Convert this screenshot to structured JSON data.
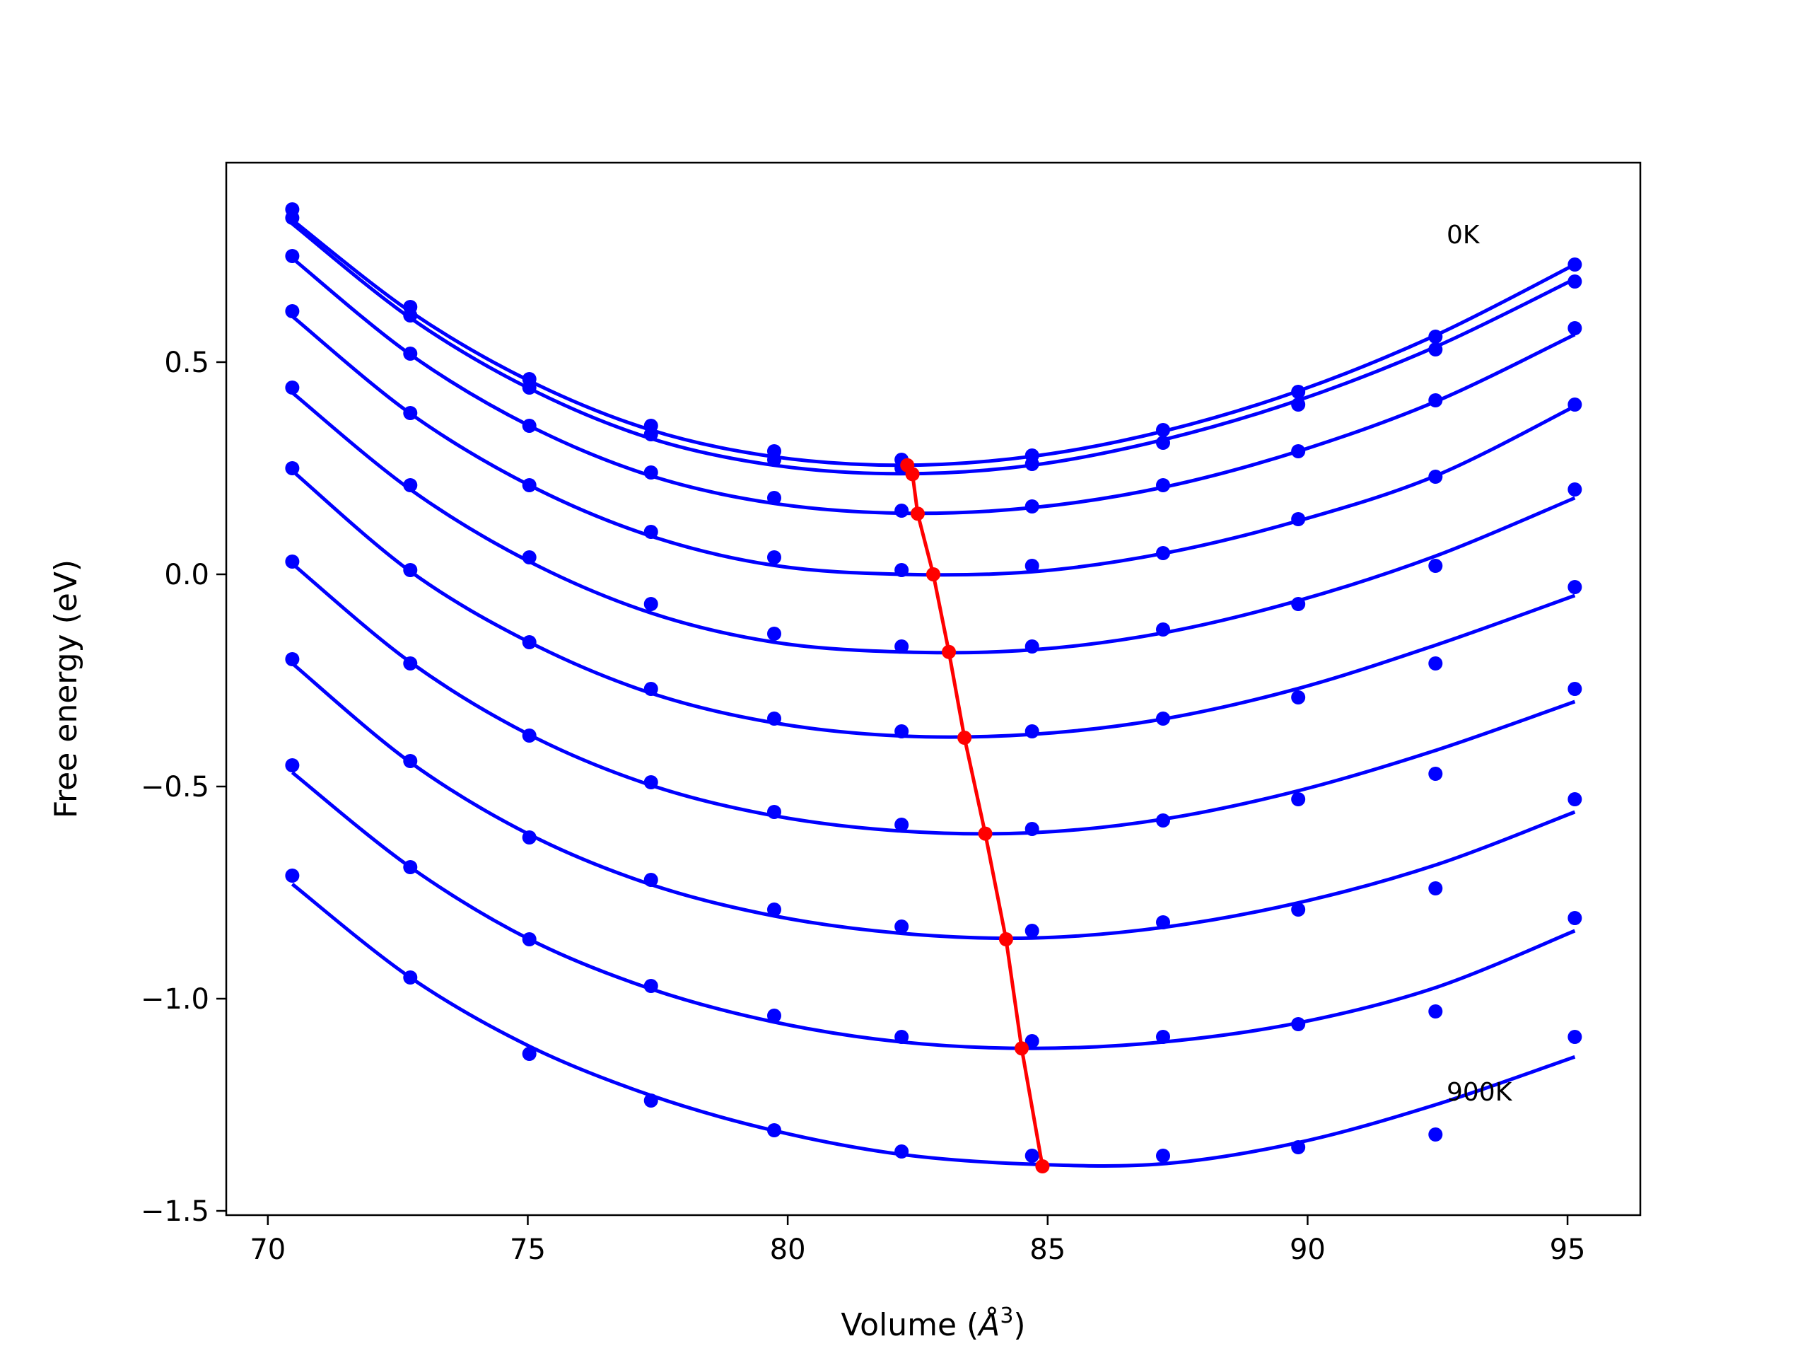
{
  "chart_data": {
    "type": "line",
    "title": "",
    "xlabel_main": "Volume (",
    "xlabel_unit": "Å",
    "xlabel_sup": "3",
    "xlabel_close": ")",
    "ylabel": "Free energy (eV)",
    "xlim": [
      69.2,
      96.4
    ],
    "ylim": [
      -1.51,
      0.97
    ],
    "x_ticks": [
      70,
      75,
      80,
      85,
      90,
      95
    ],
    "x_tick_labels": [
      "70",
      "75",
      "80",
      "85",
      "90",
      "95"
    ],
    "y_ticks": [
      -1.5,
      -1.0,
      -0.5,
      0.0,
      0.5
    ],
    "y_tick_labels": [
      "−1.5",
      "−1.0",
      "−0.5",
      "0.0",
      "0.5"
    ],
    "grid": false,
    "annotations": [
      {
        "text": "0K",
        "x": 92.5,
        "y": 0.78
      },
      {
        "text": "900K",
        "x": 92.5,
        "y": -1.25
      }
    ],
    "volumes": [
      70.47,
      72.74,
      75.03,
      77.37,
      79.74,
      82.19,
      84.7,
      87.22,
      89.82,
      92.46,
      95.14
    ],
    "curve_color": "#0000ff",
    "min_color": "#ff0000",
    "series": [
      {
        "points": [
          0.86,
          0.63,
          0.46,
          0.35,
          0.29,
          0.27,
          0.28,
          0.34,
          0.43,
          0.56,
          0.73
        ],
        "fit": [
          0.835,
          0.619,
          0.456,
          0.34,
          0.277,
          0.257,
          0.278,
          0.337,
          0.432,
          0.563,
          0.73
        ]
      },
      {
        "points": [
          0.84,
          0.61,
          0.44,
          0.33,
          0.27,
          0.25,
          0.26,
          0.31,
          0.4,
          0.53,
          0.69
        ],
        "fit": [
          0.826,
          0.604,
          0.438,
          0.32,
          0.257,
          0.237,
          0.257,
          0.317,
          0.41,
          0.536,
          0.696
        ]
      },
      {
        "points": [
          0.75,
          0.52,
          0.35,
          0.24,
          0.18,
          0.15,
          0.16,
          0.21,
          0.29,
          0.41,
          0.58
        ],
        "fit": [
          0.745,
          0.518,
          0.35,
          0.232,
          0.167,
          0.144,
          0.157,
          0.205,
          0.29,
          0.407,
          0.565
        ]
      },
      {
        "points": [
          0.62,
          0.38,
          0.21,
          0.1,
          0.04,
          0.01,
          0.02,
          0.05,
          0.13,
          0.23,
          0.4
        ],
        "fit": [
          0.608,
          0.379,
          0.21,
          0.09,
          0.021,
          0.0,
          0.006,
          0.049,
          0.126,
          0.232,
          0.396
        ]
      },
      {
        "points": [
          0.44,
          0.21,
          0.04,
          -0.07,
          -0.14,
          -0.17,
          -0.17,
          -0.13,
          -0.07,
          0.02,
          0.2
        ],
        "fit": [
          0.428,
          0.2,
          0.03,
          -0.091,
          -0.16,
          -0.183,
          -0.178,
          -0.138,
          -0.062,
          0.043,
          0.18
        ]
      },
      {
        "points": [
          0.25,
          0.01,
          -0.16,
          -0.27,
          -0.34,
          -0.37,
          -0.37,
          -0.34,
          -0.29,
          -0.21,
          -0.03
        ],
        "fit": [
          0.244,
          0.007,
          -0.16,
          -0.28,
          -0.35,
          -0.381,
          -0.377,
          -0.341,
          -0.269,
          -0.167,
          -0.05
        ]
      },
      {
        "points": [
          0.03,
          -0.21,
          -0.38,
          -0.49,
          -0.56,
          -0.59,
          -0.6,
          -0.58,
          -0.53,
          -0.47,
          -0.27
        ],
        "fit": [
          0.025,
          -0.207,
          -0.378,
          -0.497,
          -0.569,
          -0.605,
          -0.609,
          -0.577,
          -0.51,
          -0.415,
          -0.3
        ]
      },
      {
        "points": [
          -0.2,
          -0.44,
          -0.62,
          -0.72,
          -0.79,
          -0.83,
          -0.84,
          -0.82,
          -0.79,
          -0.74,
          -0.53
        ],
        "fit": [
          -0.21,
          -0.443,
          -0.613,
          -0.731,
          -0.805,
          -0.846,
          -0.857,
          -0.832,
          -0.774,
          -0.685,
          -0.56
        ]
      },
      {
        "points": [
          -0.45,
          -0.69,
          -0.86,
          -0.97,
          -1.04,
          -1.09,
          -1.1,
          -1.09,
          -1.06,
          -1.03,
          -0.81
        ],
        "fit": [
          -0.467,
          -0.69,
          -0.86,
          -0.977,
          -1.055,
          -1.102,
          -1.117,
          -1.102,
          -1.057,
          -0.974,
          -0.84
        ]
      },
      {
        "points": [
          -0.71,
          -0.95,
          -1.13,
          -1.24,
          -1.31,
          -1.36,
          -1.37,
          -1.37,
          -1.35,
          -1.32,
          -1.09
        ],
        "fit": [
          -0.73,
          -0.95,
          -1.112,
          -1.228,
          -1.311,
          -1.367,
          -1.39,
          -1.389,
          -1.339,
          -1.25,
          -1.137
        ]
      }
    ],
    "minima": [
      {
        "x": 82.3,
        "y": 0.257
      },
      {
        "x": 82.4,
        "y": 0.236
      },
      {
        "x": 82.5,
        "y": 0.143
      },
      {
        "x": 82.8,
        "y": 0.0
      },
      {
        "x": 83.1,
        "y": -0.183
      },
      {
        "x": 83.4,
        "y": -0.385
      },
      {
        "x": 83.8,
        "y": -0.611
      },
      {
        "x": 84.2,
        "y": -0.86
      },
      {
        "x": 84.5,
        "y": -1.117
      },
      {
        "x": 84.9,
        "y": -1.395
      }
    ]
  }
}
